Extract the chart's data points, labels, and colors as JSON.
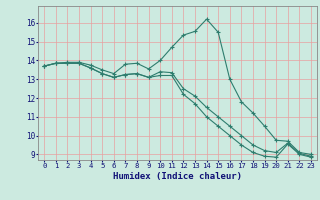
{
  "title": "",
  "xlabel": "Humidex (Indice chaleur)",
  "ylabel": "",
  "background_color": "#cceae0",
  "grid_color": "#e8a0a0",
  "line_color": "#2e7d6e",
  "xlim": [
    -0.5,
    23.5
  ],
  "ylim": [
    8.7,
    16.9
  ],
  "xticks": [
    0,
    1,
    2,
    3,
    4,
    5,
    6,
    7,
    8,
    9,
    10,
    11,
    12,
    13,
    14,
    15,
    16,
    17,
    18,
    19,
    20,
    21,
    22,
    23
  ],
  "yticks": [
    9,
    10,
    11,
    12,
    13,
    14,
    15,
    16
  ],
  "line1": [
    13.7,
    13.85,
    13.9,
    13.9,
    13.75,
    13.5,
    13.3,
    13.8,
    13.85,
    13.55,
    14.0,
    14.7,
    15.35,
    15.55,
    16.2,
    15.5,
    13.0,
    11.8,
    11.2,
    10.5,
    9.75,
    9.7,
    9.1,
    9.0
  ],
  "line2": [
    13.7,
    13.85,
    13.85,
    13.85,
    13.6,
    13.3,
    13.1,
    13.25,
    13.3,
    13.1,
    13.4,
    13.35,
    12.5,
    12.1,
    11.5,
    11.0,
    10.5,
    10.0,
    9.5,
    9.2,
    9.1,
    9.6,
    9.05,
    8.9
  ],
  "line3": [
    13.7,
    13.85,
    13.85,
    13.85,
    13.6,
    13.3,
    13.1,
    13.25,
    13.3,
    13.1,
    13.2,
    13.2,
    12.2,
    11.7,
    11.0,
    10.5,
    10.0,
    9.5,
    9.1,
    8.9,
    8.85,
    9.55,
    9.0,
    8.85
  ]
}
